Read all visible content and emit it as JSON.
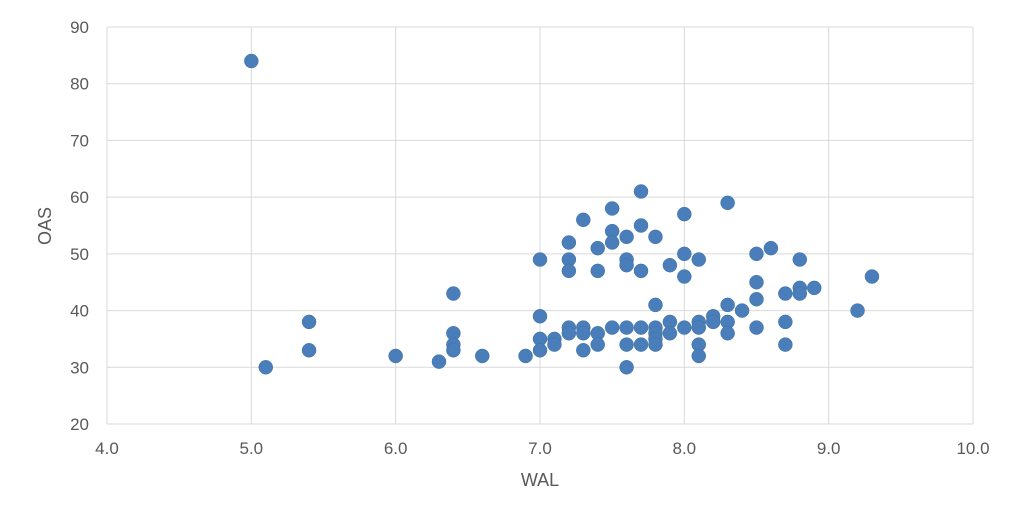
{
  "chart_data": {
    "type": "scatter",
    "xlabel": "WAL",
    "ylabel": "OAS",
    "xlim": [
      4.0,
      10.0
    ],
    "ylim": [
      20,
      90
    ],
    "x_ticks": [
      "4.0",
      "5.0",
      "6.0",
      "7.0",
      "8.0",
      "9.0",
      "10.0"
    ],
    "y_ticks": [
      "20",
      "30",
      "40",
      "50",
      "60",
      "70",
      "80",
      "90"
    ],
    "grid": true,
    "marker_color": "#4a7ebb",
    "series": [
      {
        "points": [
          [
            5.0,
            84
          ],
          [
            5.1,
            30
          ],
          [
            5.4,
            38
          ],
          [
            5.4,
            33
          ],
          [
            6.0,
            32
          ],
          [
            6.3,
            31
          ],
          [
            6.4,
            43
          ],
          [
            6.4,
            36
          ],
          [
            6.4,
            34
          ],
          [
            6.4,
            33
          ],
          [
            6.6,
            32
          ],
          [
            6.9,
            32
          ],
          [
            7.0,
            49
          ],
          [
            7.0,
            39
          ],
          [
            7.0,
            35
          ],
          [
            7.0,
            33
          ],
          [
            7.1,
            35
          ],
          [
            7.1,
            34
          ],
          [
            7.2,
            52
          ],
          [
            7.2,
            49
          ],
          [
            7.2,
            47
          ],
          [
            7.2,
            37
          ],
          [
            7.2,
            36
          ],
          [
            7.3,
            56
          ],
          [
            7.3,
            37
          ],
          [
            7.3,
            36
          ],
          [
            7.3,
            33
          ],
          [
            7.4,
            51
          ],
          [
            7.4,
            47
          ],
          [
            7.4,
            36
          ],
          [
            7.4,
            34
          ],
          [
            7.5,
            58
          ],
          [
            7.5,
            54
          ],
          [
            7.5,
            52
          ],
          [
            7.5,
            37
          ],
          [
            7.6,
            53
          ],
          [
            7.6,
            49
          ],
          [
            7.6,
            48
          ],
          [
            7.6,
            37
          ],
          [
            7.6,
            34
          ],
          [
            7.6,
            30
          ],
          [
            7.7,
            61
          ],
          [
            7.7,
            55
          ],
          [
            7.7,
            47
          ],
          [
            7.7,
            37
          ],
          [
            7.7,
            34
          ],
          [
            7.8,
            53
          ],
          [
            7.8,
            41
          ],
          [
            7.8,
            37
          ],
          [
            7.8,
            36
          ],
          [
            7.8,
            35
          ],
          [
            7.8,
            34
          ],
          [
            7.9,
            48
          ],
          [
            7.9,
            38
          ],
          [
            7.9,
            36
          ],
          [
            8.0,
            57
          ],
          [
            8.0,
            50
          ],
          [
            8.0,
            46
          ],
          [
            8.0,
            37
          ],
          [
            8.1,
            49
          ],
          [
            8.1,
            38
          ],
          [
            8.1,
            37
          ],
          [
            8.1,
            34
          ],
          [
            8.1,
            32
          ],
          [
            8.2,
            39
          ],
          [
            8.2,
            38
          ],
          [
            8.3,
            59
          ],
          [
            8.3,
            41
          ],
          [
            8.3,
            38
          ],
          [
            8.3,
            36
          ],
          [
            8.4,
            40
          ],
          [
            8.5,
            50
          ],
          [
            8.5,
            45
          ],
          [
            8.5,
            42
          ],
          [
            8.5,
            37
          ],
          [
            8.6,
            51
          ],
          [
            8.7,
            43
          ],
          [
            8.7,
            38
          ],
          [
            8.7,
            34
          ],
          [
            8.8,
            49
          ],
          [
            8.8,
            44
          ],
          [
            8.8,
            43
          ],
          [
            8.9,
            44
          ],
          [
            9.2,
            40
          ],
          [
            9.3,
            46
          ]
        ]
      }
    ]
  }
}
